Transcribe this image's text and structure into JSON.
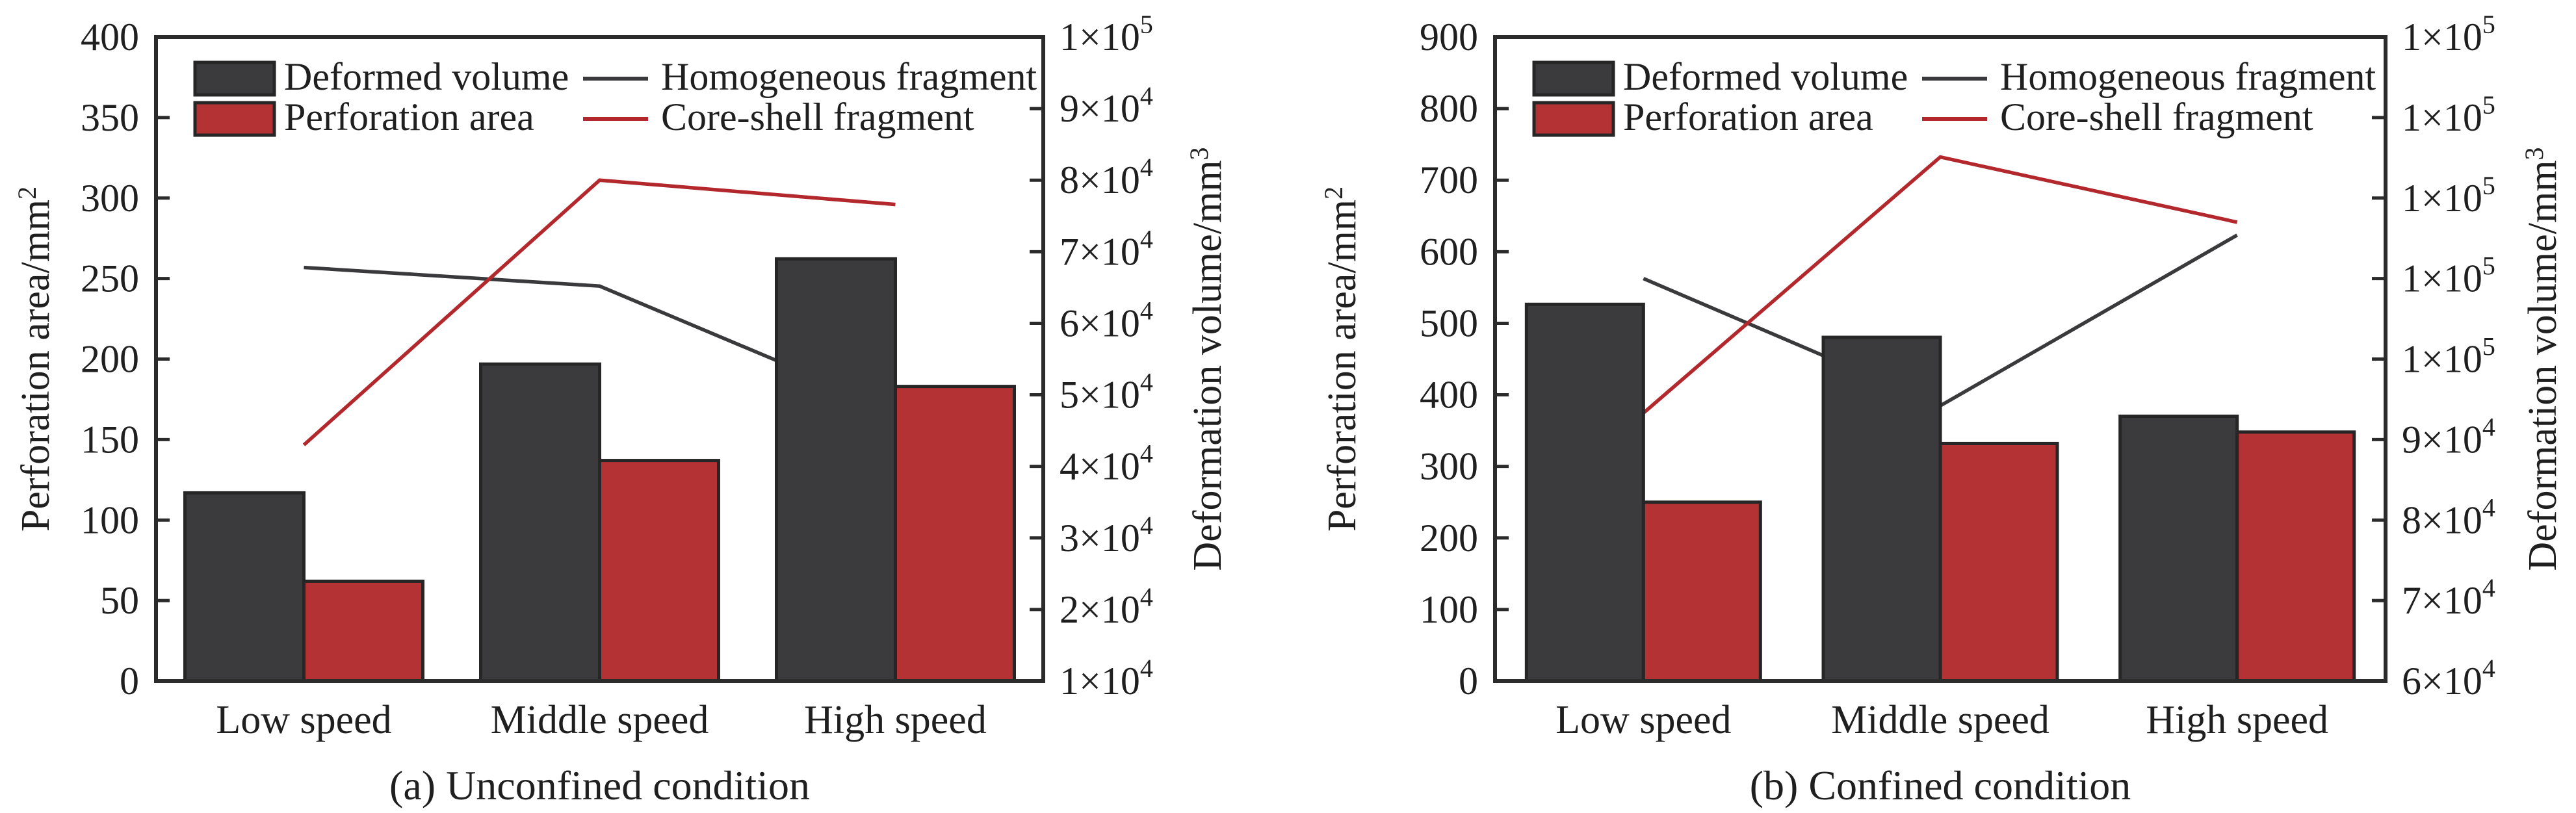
{
  "figure": {
    "background": "#ffffff",
    "text_color": "#1f1f1f",
    "frame_color": "#2b2b2b",
    "colors": {
      "dark": {
        "bar_fill": "#3b3b3d",
        "line": "#3a3a3c",
        "edge": "#262626"
      },
      "red": {
        "bar_fill": "#b43134",
        "line": "#b2282c",
        "edge": "#262626"
      }
    }
  },
  "chart_data": [
    {
      "id": "a",
      "type": "bar+line",
      "caption": "(a) Unconfined condition",
      "categories": [
        "Low speed",
        "Middle speed",
        "High speed"
      ],
      "axes": {
        "left": {
          "label": "Perforation area/mm^2",
          "min": 0,
          "max": 400,
          "ticks": [
            "0",
            "50",
            "100",
            "150",
            "200",
            "250",
            "300",
            "350",
            "400"
          ]
        },
        "right": {
          "label": "Deformation volume/mm^3",
          "min": 10000,
          "max": 100000,
          "ticks": [
            "1×10^4",
            "2×10^4",
            "3×10^4",
            "4×10^4",
            "5×10^4",
            "6×10^4",
            "7×10^4",
            "8×10^4",
            "9×10^4",
            "1×10^5"
          ]
        }
      },
      "series": [
        {
          "name": "Deformed volume",
          "kind": "bar",
          "axis": "right",
          "color_key": "dark",
          "values": [
            36300,
            54300,
            69000
          ]
        },
        {
          "name": "Perforation area",
          "kind": "bar",
          "axis": "left",
          "color_key": "red",
          "values": [
            62,
            137,
            183
          ]
        },
        {
          "name": "Homogeneous fragment",
          "kind": "line",
          "axis": "right",
          "color_key": "dark",
          "values": [
            67800,
            65200,
            47800
          ]
        },
        {
          "name": "Core-shell fragment",
          "kind": "line",
          "axis": "right",
          "color_key": "red",
          "values": [
            43000,
            80000,
            76600
          ]
        }
      ]
    },
    {
      "id": "b",
      "type": "bar+line",
      "caption": "(b) Confined condition",
      "categories": [
        "Low speed",
        "Middle speed",
        "High speed"
      ],
      "axes": {
        "left": {
          "label": "Perforation area/mm^2",
          "min": 0,
          "max": 900,
          "ticks": [
            "0",
            "100",
            "200",
            "300",
            "400",
            "500",
            "600",
            "700",
            "800",
            "900"
          ]
        },
        "right": {
          "label": "Deformation volume/mm^3",
          "min": 60000,
          "max": 140000,
          "ticks": [
            "6×10^4",
            "7×10^4",
            "8×10^4",
            "9×10^4",
            "1×10^5",
            "1×10^5",
            "1×10^5",
            "1×10^5",
            "1×10^5"
          ]
        }
      },
      "series": [
        {
          "name": "Deformed volume",
          "kind": "bar",
          "axis": "right",
          "color_key": "dark",
          "values": [
            106800,
            102700,
            92900
          ]
        },
        {
          "name": "Perforation area",
          "kind": "bar",
          "axis": "left",
          "color_key": "red",
          "values": [
            250,
            332,
            348
          ]
        },
        {
          "name": "Homogeneous fragment",
          "kind": "line",
          "axis": "right",
          "color_key": "dark",
          "values": [
            110000,
            94200,
            115400
          ]
        },
        {
          "name": "Core-shell fragment",
          "kind": "line",
          "axis": "right",
          "color_key": "red",
          "values": [
            93300,
            125100,
            117000
          ]
        }
      ]
    }
  ]
}
